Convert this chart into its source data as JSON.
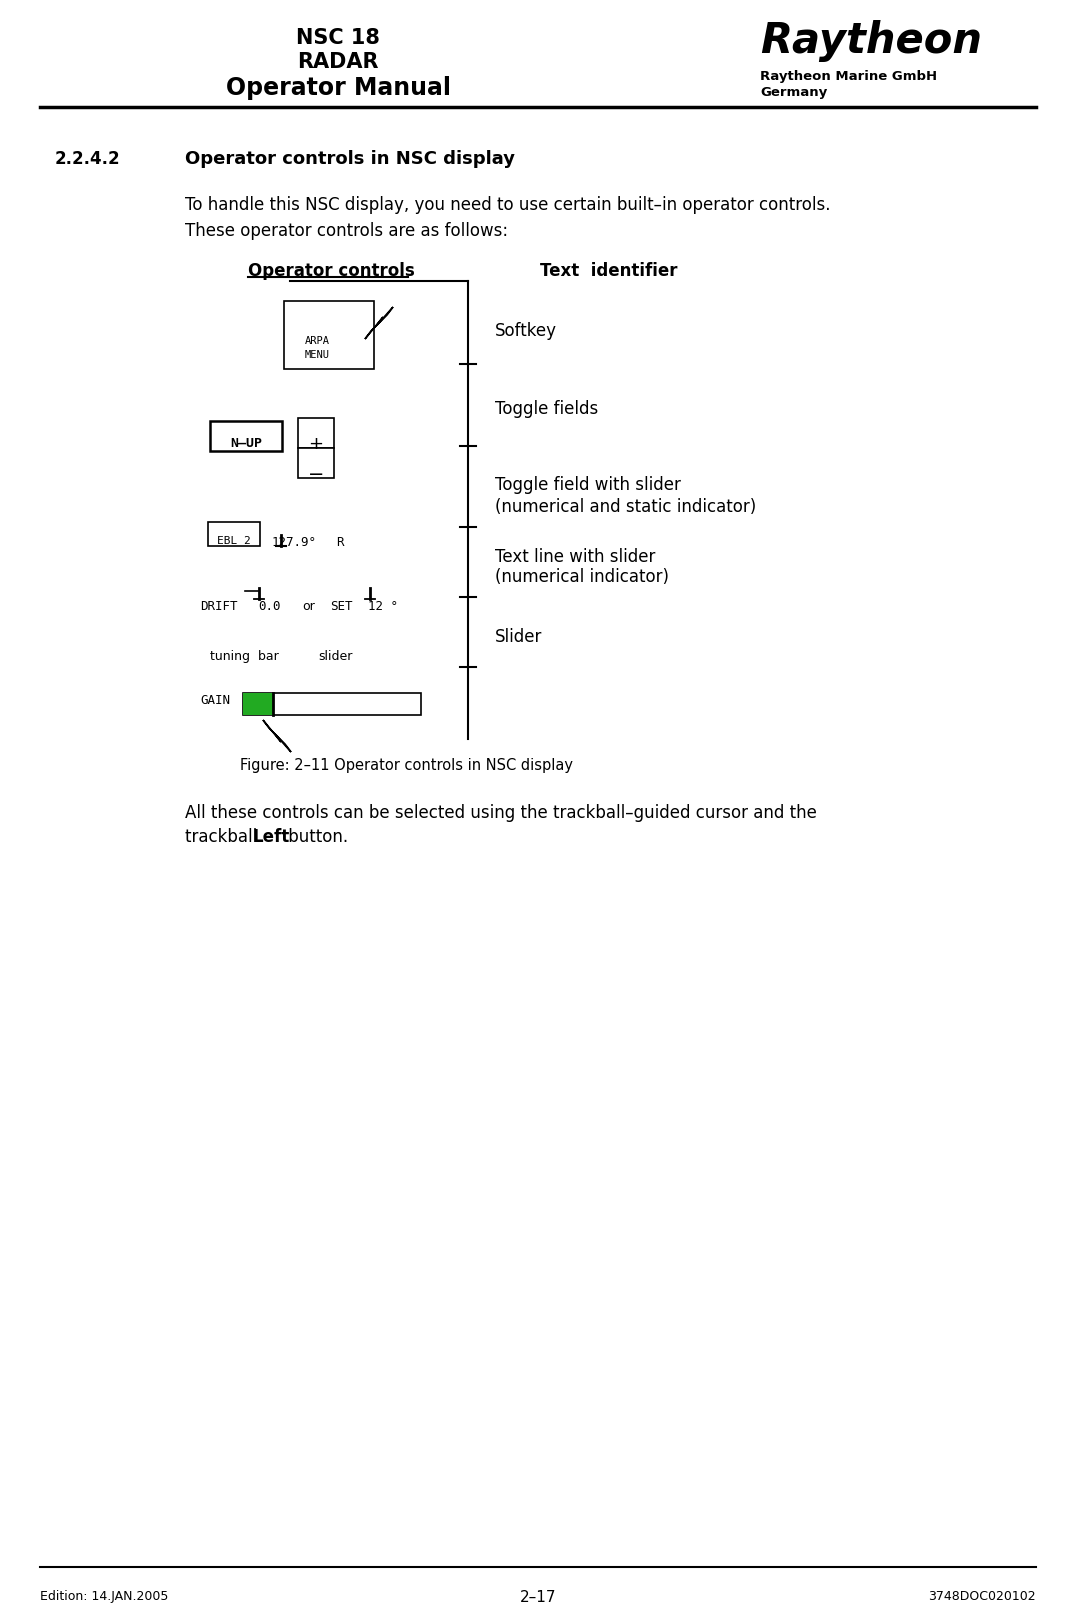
{
  "bg_color": "#ffffff",
  "header": {
    "title_line1": "NSC 18",
    "title_line2": "RADAR",
    "title_line3": "Operator Manual",
    "brand": "Raytheon",
    "company_line1": "Raytheon Marine GmbH",
    "company_line2": "Germany"
  },
  "footer": {
    "left": "Edition: 14.JAN.2005",
    "center": "2–17",
    "right": "3748DOC020102"
  },
  "section": {
    "number": "2.2.4.2",
    "title": "Operator controls in NSC display"
  },
  "body_text": [
    "To handle this NSC display, you need to use certain built–in operator controls.",
    "These operator controls are as follows:"
  ],
  "figure_caption": "Figure: 2–11 Operator controls in NSC display",
  "diagram_labels": {
    "op_controls": "Operator controls",
    "text_id": "Text  identifier",
    "softkey": "Softkey",
    "toggle_fields": "Toggle fields",
    "toggle_slider_line1": "Toggle field with slider",
    "toggle_slider_line2": "(numerical and static indicator)",
    "text_slider_line1": "Text line with slider",
    "text_slider_line2": "(numerical indicator)",
    "slider": "Slider",
    "tuning_bar": "tuning  bar",
    "slider_label": "slider"
  },
  "closing_text_line1": "All these controls can be selected using the trackball–guided cursor and the",
  "closing_text_line2_normal": "trackball ",
  "closing_text_line2_bold": "Left",
  "closing_text_line2_end": " button."
}
